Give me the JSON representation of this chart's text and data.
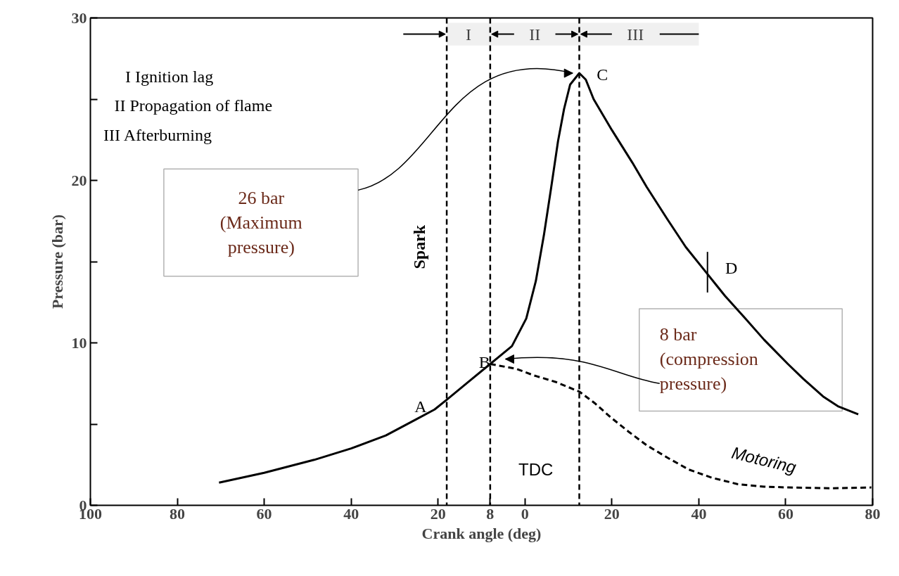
{
  "chart_data": {
    "type": "line",
    "xlabel": "Crank angle (deg)",
    "ylabel": "Pressure (bar)",
    "xlim": [
      -100,
      80
    ],
    "ylim": [
      0,
      30
    ],
    "xticks": [
      {
        "value": -100,
        "label": "100"
      },
      {
        "value": -80,
        "label": "80"
      },
      {
        "value": -60,
        "label": "60"
      },
      {
        "value": -40,
        "label": "40"
      },
      {
        "value": -20,
        "label": "20"
      },
      {
        "value": -8,
        "label": "8"
      },
      0,
      20,
      40,
      60,
      80
    ],
    "yticks": [
      0,
      {
        "value": 5,
        "label": null
      },
      10,
      {
        "value": 15,
        "label": null
      },
      20,
      {
        "value": 25,
        "label": null
      },
      30
    ],
    "grid": false,
    "marker": "none",
    "series": [
      {
        "color": "#000000",
        "line_style": "solid",
        "x": [
          -70.4,
          -60,
          -48.5,
          -40,
          -32,
          -25,
          -20.8,
          -18,
          -13,
          -8,
          -3,
          0.3,
          2.5,
          4.4,
          6,
          7.6,
          9,
          10.4,
          12.5,
          14,
          15.8,
          20,
          24.7,
          28,
          32.8,
          37,
          41.8,
          46,
          50.7,
          55,
          60.5,
          64,
          68.6,
          72,
          76.7
        ],
        "values": [
          1.4,
          2.0,
          2.8,
          3.5,
          4.3,
          5.3,
          5.9,
          6.5,
          7.6,
          8.7,
          9.8,
          11.5,
          13.8,
          16.7,
          19.5,
          22.4,
          24.4,
          25.9,
          26.6,
          26.2,
          25.0,
          23.1,
          21.1,
          19.6,
          17.6,
          15.9,
          14.3,
          12.9,
          11.5,
          10.2,
          8.7,
          7.8,
          6.7,
          6.1,
          5.6
        ]
      },
      {
        "color": "#000000",
        "line_style": "dashed",
        "x": [
          -8,
          -2,
          2,
          7,
          12.5,
          16,
          19.8,
          24,
          28,
          33,
          37.7,
          43,
          49,
          55,
          60.5,
          70,
          79.7
        ],
        "values": [
          8.7,
          8.4,
          8.0,
          7.6,
          7.0,
          6.3,
          5.4,
          4.5,
          3.7,
          2.9,
          2.2,
          1.7,
          1.3,
          1.15,
          1.1,
          1.05,
          1.1
        ]
      }
    ],
    "ref_lines": [
      {
        "axis": "x",
        "value": -18,
        "line_style": "dashed"
      },
      {
        "axis": "x",
        "value": -8,
        "line_style": "dashed"
      },
      {
        "axis": "x",
        "value": 12.5,
        "line_style": "dashed"
      }
    ],
    "bands": [
      {
        "axis": "x",
        "from": -18,
        "to": -8,
        "label": "I",
        "color": "#f0f0f0"
      },
      {
        "axis": "x",
        "from": -8,
        "to": 12.5,
        "label": "II",
        "color": "#f0f0f0"
      },
      {
        "axis": "x",
        "from": 12.5,
        "to": 40,
        "label": "III",
        "color": "#f0f0f0"
      }
    ],
    "annotations": [
      "I    Ignition lag",
      "II    Propagation of flame",
      "III    Afterburning",
      "Spark",
      "TDC",
      "Motoring",
      {
        "text": "A",
        "x": -18,
        "y": 6.5
      },
      {
        "text": "B",
        "x": -8,
        "y": 8.7
      },
      {
        "text": "C",
        "x": 12.5,
        "y": 26.6
      },
      {
        "text": "D",
        "x": 42,
        "y": 14.3
      },
      "26 bar\n(Maximum\npressure)",
      "8 bar\n(compression\npressure)"
    ]
  }
}
